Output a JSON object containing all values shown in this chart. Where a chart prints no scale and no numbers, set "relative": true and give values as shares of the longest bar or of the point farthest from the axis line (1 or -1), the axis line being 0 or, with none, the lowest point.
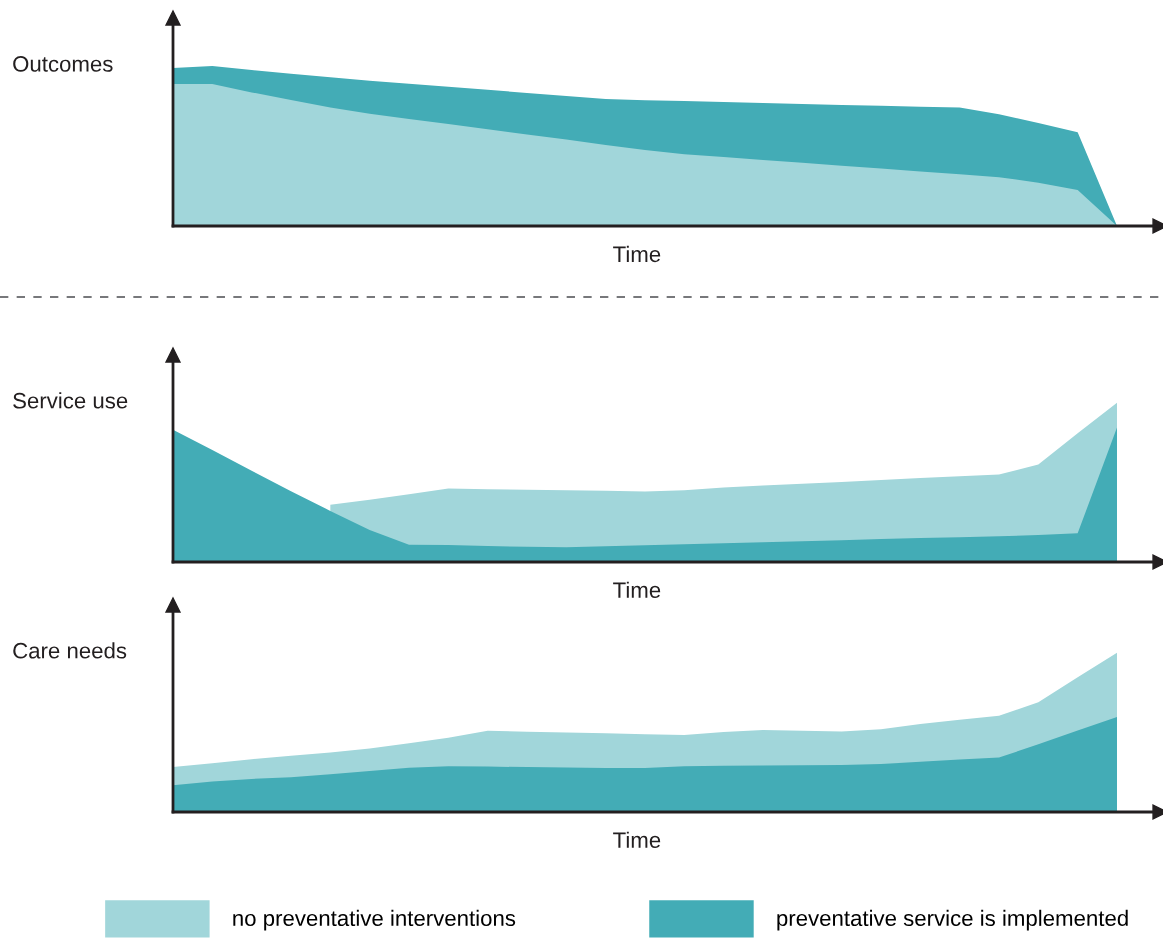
{
  "chart_data": [
    {
      "type": "area",
      "relative": true,
      "ylabel": "Outcomes",
      "xlabel": "Time",
      "legend": false,
      "categories": [
        null,
        null,
        null,
        null,
        null,
        null,
        null,
        null,
        null,
        null,
        null,
        null,
        null,
        null,
        null,
        null,
        null,
        null,
        null,
        null,
        null,
        null,
        null,
        null,
        null
      ],
      "series": [
        {
          "color": "#43acb6",
          "values": [
            0.988,
            1.0,
            0.975,
            0.952,
            0.929,
            0.908,
            0.889,
            0.87,
            0.851,
            0.832,
            0.813,
            0.793,
            0.786,
            0.781,
            0.775,
            0.769,
            0.763,
            0.757,
            0.751,
            0.745,
            0.74,
            0.698,
            0.643,
            0.586,
            0
          ]
        },
        {
          "color": "#a1d6da",
          "values": [
            0.887,
            0.887,
            0.835,
            0.787,
            0.741,
            0.701,
            0.669,
            0.637,
            0.604,
            0.572,
            0.54,
            0.507,
            0.475,
            0.449,
            0.432,
            0.413,
            0.395,
            0.377,
            0.359,
            0.341,
            0.323,
            0.305,
            0.271,
            0.225,
            0
          ]
        }
      ]
    },
    {
      "type": "area",
      "relative": true,
      "ylabel": "Service use",
      "xlabel": "Time",
      "legend": false,
      "categories": [
        null,
        null,
        null,
        null,
        null,
        null,
        null,
        null,
        null,
        null,
        null,
        null,
        null,
        null,
        null,
        null,
        null,
        null,
        null,
        null,
        null,
        null,
        null,
        null,
        null
      ],
      "series": [
        {
          "color": "#a1d6da",
          "values": [
            null,
            null,
            null,
            null,
            0.359,
            0.391,
            0.425,
            0.461,
            0.457,
            0.454,
            0.45,
            0.447,
            0.443,
            0.451,
            0.468,
            0.48,
            0.492,
            0.503,
            0.515,
            0.527,
            0.538,
            0.55,
            0.612,
            0.808,
            1.0
          ]
        },
        {
          "color": "#43acb6",
          "values": [
            0.831,
            0.704,
            0.573,
            0.445,
            0.321,
            0.201,
            0.109,
            0.106,
            0.101,
            0.095,
            0.092,
            0.099,
            0.105,
            0.111,
            0.118,
            0.124,
            0.131,
            0.137,
            0.144,
            0.15,
            0.156,
            0.162,
            0.169,
            0.18,
            0.844
          ]
        }
      ]
    },
    {
      "type": "area",
      "relative": true,
      "ylabel": "Care needs",
      "xlabel": "Time",
      "legend": "bottom",
      "categories": [
        null,
        null,
        null,
        null,
        null,
        null,
        null,
        null,
        null,
        null,
        null,
        null,
        null,
        null,
        null,
        null,
        null,
        null,
        null,
        null,
        null,
        null,
        null,
        null,
        null
      ],
      "series": [
        {
          "name": "no preventative interventions",
          "color": "#a1d6da",
          "values": [
            0.282,
            0.306,
            0.332,
            0.354,
            0.373,
            0.399,
            0.431,
            0.466,
            0.51,
            0.504,
            0.499,
            0.494,
            0.489,
            0.484,
            0.503,
            0.515,
            0.51,
            0.506,
            0.52,
            0.552,
            0.58,
            0.604,
            0.689,
            0.846,
            1.0
          ]
        },
        {
          "name": "preventative service is implemented",
          "color": "#43acb6",
          "values": [
            0.168,
            0.191,
            0.208,
            0.219,
            0.237,
            0.258,
            0.278,
            0.288,
            0.285,
            0.282,
            0.28,
            0.277,
            0.277,
            0.287,
            0.29,
            0.292,
            0.293,
            0.295,
            0.302,
            0.315,
            0.329,
            0.342,
            0.425,
            0.512,
            0.597
          ]
        }
      ]
    }
  ]
}
